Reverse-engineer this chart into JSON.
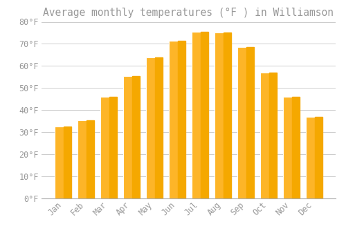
{
  "title": "Average monthly temperatures (°F ) in Williamson",
  "months": [
    "Jan",
    "Feb",
    "Mar",
    "Apr",
    "May",
    "Jun",
    "Jul",
    "Aug",
    "Sep",
    "Oct",
    "Nov",
    "Dec"
  ],
  "values": [
    32.5,
    35.5,
    46.0,
    55.5,
    64.0,
    71.5,
    75.5,
    75.0,
    68.5,
    57.0,
    46.0,
    37.0
  ],
  "bar_color_top": "#FDB528",
  "bar_color_bottom": "#F5A800",
  "background_color": "#FFFFFF",
  "grid_color": "#CCCCCC",
  "text_color": "#999999",
  "ylim": [
    0,
    80
  ],
  "yticks": [
    0,
    10,
    20,
    30,
    40,
    50,
    60,
    70,
    80
  ],
  "ytick_labels": [
    "0°F",
    "10°F",
    "20°F",
    "30°F",
    "40°F",
    "50°F",
    "60°F",
    "70°F",
    "80°F"
  ],
  "font_family": "monospace",
  "title_fontsize": 10.5,
  "tick_fontsize": 8.5
}
